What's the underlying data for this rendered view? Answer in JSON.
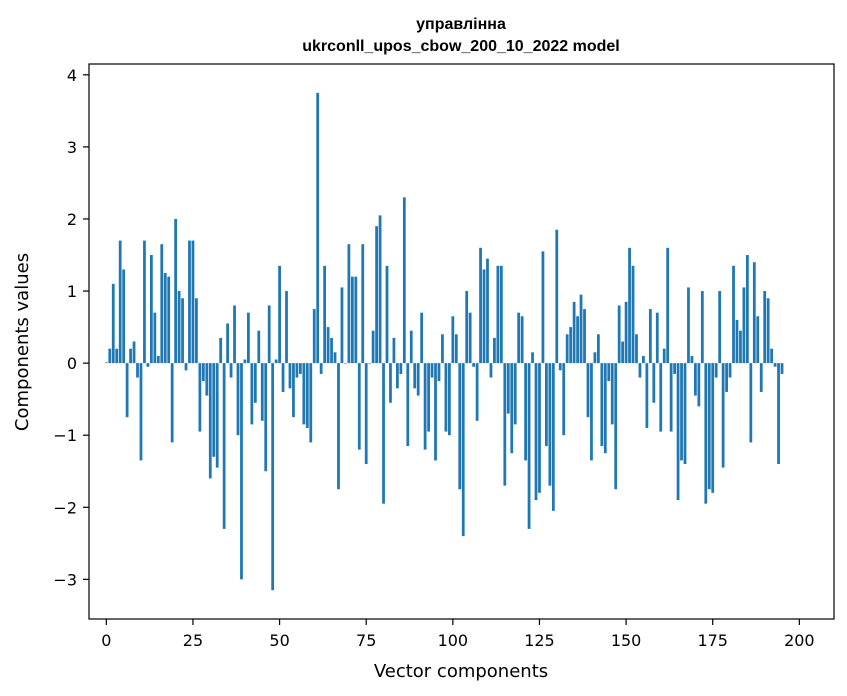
{
  "chart_data": {
    "type": "bar",
    "title_line1": "управлінна",
    "title_line2": "ukrconll_upos_cbow_200_10_2022 model",
    "xlabel": "Vector components",
    "ylabel": "Components values",
    "xlim": [
      -5,
      210
    ],
    "ylim": [
      -3.55,
      4.15
    ],
    "xticks": [
      0,
      25,
      50,
      75,
      100,
      125,
      150,
      175,
      200
    ],
    "yticks": [
      -3,
      -2,
      -1,
      0,
      1,
      2,
      3,
      4
    ],
    "xtick_labels": [
      "0",
      "25",
      "50",
      "75",
      "100",
      "125",
      "150",
      "175",
      "200"
    ],
    "ytick_labels": [
      "−3",
      "−2",
      "−1",
      "0",
      "1",
      "2",
      "3",
      "4"
    ],
    "bar_color": "#1f77b4",
    "grid": false,
    "values": [
      0.01,
      0.2,
      1.1,
      0.2,
      1.7,
      1.3,
      -0.75,
      0.2,
      0.3,
      -0.2,
      -1.35,
      1.7,
      -0.05,
      1.5,
      0.7,
      0.1,
      1.65,
      1.25,
      1.2,
      -1.1,
      2.0,
      1.0,
      0.9,
      -0.1,
      1.7,
      1.7,
      0.9,
      -0.95,
      -0.25,
      -0.45,
      -1.6,
      -1.3,
      -1.45,
      0.35,
      -2.3,
      0.55,
      -0.2,
      0.8,
      -1.0,
      -3.0,
      0.05,
      0.7,
      -0.85,
      -0.55,
      0.45,
      -0.8,
      -1.5,
      0.8,
      -3.15,
      0.05,
      1.35,
      -0.4,
      1.0,
      -0.35,
      -0.75,
      -0.2,
      -0.15,
      -0.85,
      -0.9,
      -1.1,
      0.75,
      3.75,
      -0.15,
      1.35,
      0.5,
      0.35,
      0.15,
      -1.75,
      1.05,
      0.0,
      1.65,
      1.2,
      1.2,
      -1.2,
      1.65,
      -1.4,
      0.0,
      0.45,
      1.9,
      2.05,
      -1.95,
      1.35,
      -0.55,
      0.35,
      -0.35,
      -0.15,
      2.3,
      -1.15,
      0.45,
      -0.35,
      -0.45,
      0.7,
      -1.2,
      -0.95,
      -0.2,
      -1.35,
      -0.25,
      0.4,
      -0.95,
      -1.0,
      0.65,
      0.4,
      -1.75,
      -2.4,
      1.0,
      0.7,
      -0.05,
      -0.8,
      1.6,
      1.3,
      1.45,
      -0.2,
      0.35,
      1.35,
      1.35,
      -1.7,
      -0.7,
      -1.25,
      -0.85,
      0.7,
      0.65,
      -1.35,
      -2.3,
      0.15,
      -1.9,
      -1.8,
      1.55,
      -1.15,
      -1.7,
      -2.05,
      1.85,
      -0.1,
      -1.0,
      0.4,
      0.5,
      0.85,
      0.65,
      0.95,
      0.75,
      -0.75,
      -1.35,
      0.15,
      0.4,
      -1.15,
      -1.25,
      -0.25,
      -0.85,
      -1.75,
      0.8,
      0.3,
      0.85,
      1.6,
      1.35,
      0.4,
      -0.2,
      0.1,
      -0.9,
      0.75,
      -0.55,
      0.7,
      -0.95,
      0.2,
      1.6,
      -0.95,
      -0.15,
      -1.9,
      -1.35,
      -1.4,
      1.05,
      0.1,
      -0.45,
      -0.6,
      1.0,
      -1.95,
      -1.75,
      -1.8,
      -0.2,
      1.0,
      -1.45,
      -0.4,
      -0.2,
      1.35,
      0.6,
      0.45,
      1.05,
      1.5,
      -1.1,
      1.4,
      0.65,
      -0.4,
      1.0,
      0.9,
      0.2,
      -0.05,
      -1.4,
      -0.15
    ]
  }
}
